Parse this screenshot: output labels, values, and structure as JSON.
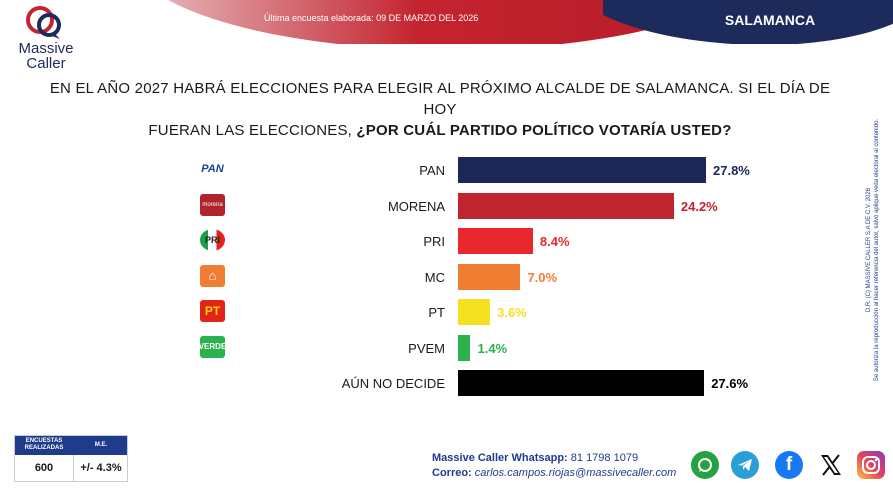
{
  "header": {
    "poll_date": "Última encuesta elaborada: 09 DE MARZO DEL 2026",
    "region": "SALAMANCA",
    "logo_line1": "Massive",
    "logo_line2": "Caller"
  },
  "question": {
    "line1": "EN EL AÑO 2027 HABRÁ ELECCIONES PARA ELEGIR AL PRÓXIMO ALCALDE DE SALAMANCA. SI EL DÍA DE HOY",
    "line2_plain": "FUERAN LAS ELECCIONES, ",
    "line2_bold": "¿POR CUÁL PARTIDO POLÍTICO VOTARÍA USTED?"
  },
  "chart_data": {
    "type": "bar",
    "orientation": "horizontal",
    "categories": [
      "PAN",
      "MORENA",
      "PRI",
      "MC",
      "PT",
      "PVEM",
      "AÚN NO DECIDE"
    ],
    "values": [
      27.8,
      24.2,
      8.4,
      7.0,
      3.6,
      1.4,
      27.6
    ],
    "value_labels": [
      "27.8%",
      "24.2%",
      "8.4%",
      "7.0%",
      "3.6%",
      "1.4%",
      "27.6%"
    ],
    "colors": [
      "#1c2657",
      "#c0252f",
      "#e8282c",
      "#ef7d32",
      "#f5e11f",
      "#2bb24c",
      "#000000"
    ],
    "label_colors": [
      "#1c2657",
      "#c0252f",
      "#e8282c",
      "#ef7d32",
      "#f5e11f",
      "#2bb24c",
      "#000000"
    ],
    "icons": [
      "pan-logo",
      "morena-logo",
      "pri-logo",
      "mc-logo",
      "pt-logo",
      "verde-logo",
      ""
    ],
    "icon_text": [
      "PAN",
      "morena",
      "PRI",
      "",
      "PT",
      "VERDE",
      ""
    ],
    "xlim": [
      0,
      30
    ]
  },
  "sample": {
    "head1": "ENCUESTAS REALIZADAS",
    "head2": "M.E.",
    "value1": "600",
    "value2": "+/- 4.3%"
  },
  "contact": {
    "whatsapp_label": "Massive Caller Whatsapp:",
    "whatsapp_number": " 81 1798 1079",
    "email_label": "Correo:",
    "email": " carlos.campos.riojas@massivecaller.com"
  },
  "social": [
    "whatsapp-icon",
    "telegram-icon",
    "facebook-icon",
    "x-icon",
    "instagram-icon"
  ],
  "side_note": {
    "line1": "D.R. (C) MASSIVE CALLER S.A DE C.V. 2026",
    "line2": "Se autoriza la reproducción al hacer referencia del autor, salvo aplique veda electoral al contenido."
  }
}
